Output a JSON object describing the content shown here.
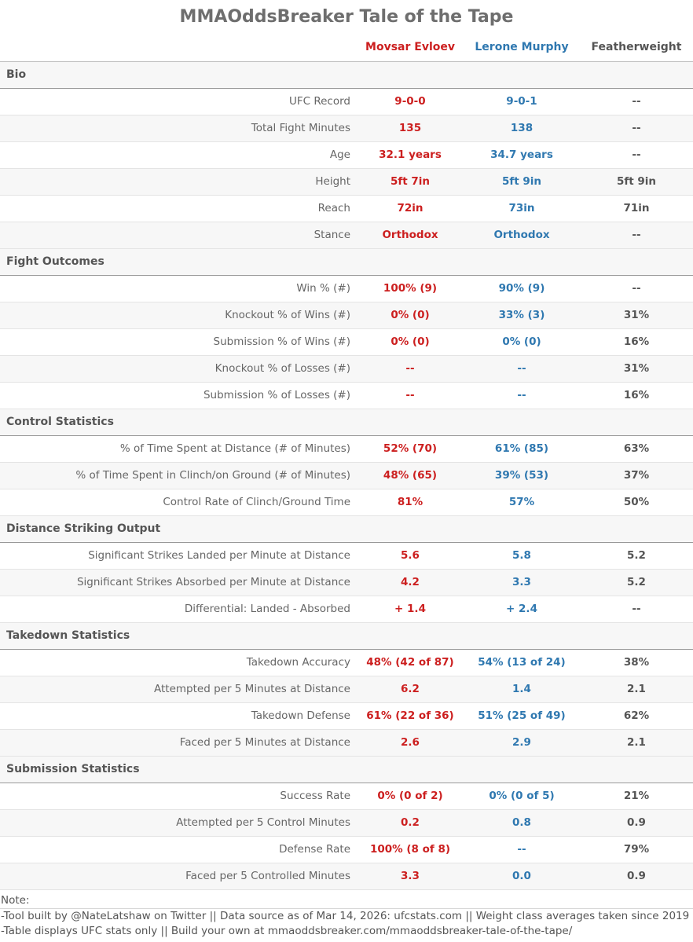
{
  "title": "MMAOddsBreaker Tale of the Tape",
  "headers": {
    "fighter1": "Movsar Evloev",
    "fighter2": "Lerone Murphy",
    "division": "Featherweight"
  },
  "colors": {
    "fighter1": "#cc1f1f",
    "fighter2": "#2f78b0"
  },
  "sections": [
    {
      "name": "Bio",
      "rows": [
        {
          "label": "UFC Record",
          "f1": "9-0-0",
          "f2": "9-0-1",
          "avg": "--"
        },
        {
          "label": "Total Fight Minutes",
          "f1": "135",
          "f2": "138",
          "avg": "--"
        },
        {
          "label": "Age",
          "f1": "32.1 years",
          "f2": "34.7 years",
          "avg": "--"
        },
        {
          "label": "Height",
          "f1": "5ft 7in",
          "f2": "5ft 9in",
          "avg": "5ft 9in"
        },
        {
          "label": "Reach",
          "f1": "72in",
          "f2": "73in",
          "avg": "71in"
        },
        {
          "label": "Stance",
          "f1": "Orthodox",
          "f2": "Orthodox",
          "avg": "--"
        }
      ]
    },
    {
      "name": "Fight Outcomes",
      "rows": [
        {
          "label": "Win % (#)",
          "f1": "100% (9)",
          "f2": "90% (9)",
          "avg": "--"
        },
        {
          "label": "Knockout % of Wins (#)",
          "f1": "0% (0)",
          "f2": "33% (3)",
          "avg": "31%"
        },
        {
          "label": "Submission % of Wins (#)",
          "f1": "0% (0)",
          "f2": "0% (0)",
          "avg": "16%"
        },
        {
          "label": "Knockout % of Losses (#)",
          "f1": "--",
          "f2": "--",
          "avg": "31%"
        },
        {
          "label": "Submission % of Losses (#)",
          "f1": "--",
          "f2": "--",
          "avg": "16%"
        }
      ]
    },
    {
      "name": "Control Statistics",
      "rows": [
        {
          "label": "% of Time Spent at Distance (# of Minutes)",
          "f1": "52% (70)",
          "f2": "61% (85)",
          "avg": "63%"
        },
        {
          "label": "% of Time Spent in Clinch/on Ground (# of Minutes)",
          "f1": "48% (65)",
          "f2": "39% (53)",
          "avg": "37%"
        },
        {
          "label": "Control Rate of Clinch/Ground Time",
          "f1": "81%",
          "f2": "57%",
          "avg": "50%"
        }
      ]
    },
    {
      "name": "Distance Striking Output",
      "rows": [
        {
          "label": "Significant Strikes Landed per Minute at Distance",
          "f1": "5.6",
          "f2": "5.8",
          "avg": "5.2"
        },
        {
          "label": "Significant Strikes Absorbed per Minute at Distance",
          "f1": "4.2",
          "f2": "3.3",
          "avg": "5.2"
        },
        {
          "label": "Differential: Landed - Absorbed",
          "f1": "+ 1.4",
          "f2": "+ 2.4",
          "avg": "--"
        }
      ]
    },
    {
      "name": "Takedown Statistics",
      "rows": [
        {
          "label": "Takedown Accuracy",
          "f1": "48% (42 of 87)",
          "f2": "54% (13 of 24)",
          "avg": "38%"
        },
        {
          "label": "Attempted per 5 Minutes at Distance",
          "f1": "6.2",
          "f2": "1.4",
          "avg": "2.1"
        },
        {
          "label": "Takedown Defense",
          "f1": "61% (22 of 36)",
          "f2": "51% (25 of 49)",
          "avg": "62%"
        },
        {
          "label": "Faced per 5 Minutes at Distance",
          "f1": "2.6",
          "f2": "2.9",
          "avg": "2.1"
        }
      ]
    },
    {
      "name": "Submission Statistics",
      "rows": [
        {
          "label": "Success Rate",
          "f1": "0% (0 of 2)",
          "f2": "0% (0 of 5)",
          "avg": "21%"
        },
        {
          "label": "Attempted per 5 Control Minutes",
          "f1": "0.2",
          "f2": "0.8",
          "avg": "0.9"
        },
        {
          "label": "Defense Rate",
          "f1": "100% (8 of 8)",
          "f2": "--",
          "avg": "79%"
        },
        {
          "label": "Faced per 5 Controlled Minutes",
          "f1": "3.3",
          "f2": "0.0",
          "avg": "0.9"
        }
      ]
    }
  ],
  "notes": {
    "heading": "Note:",
    "lines": [
      "-Tool built by @NateLatshaw on Twitter || Data source as of Mar 14, 2026: ufcstats.com || Weight class averages taken since 2019",
      "-Table displays UFC stats only || Build your own at mmaoddsbreaker.com/mmaoddsbreaker-tale-of-the-tape/"
    ]
  }
}
